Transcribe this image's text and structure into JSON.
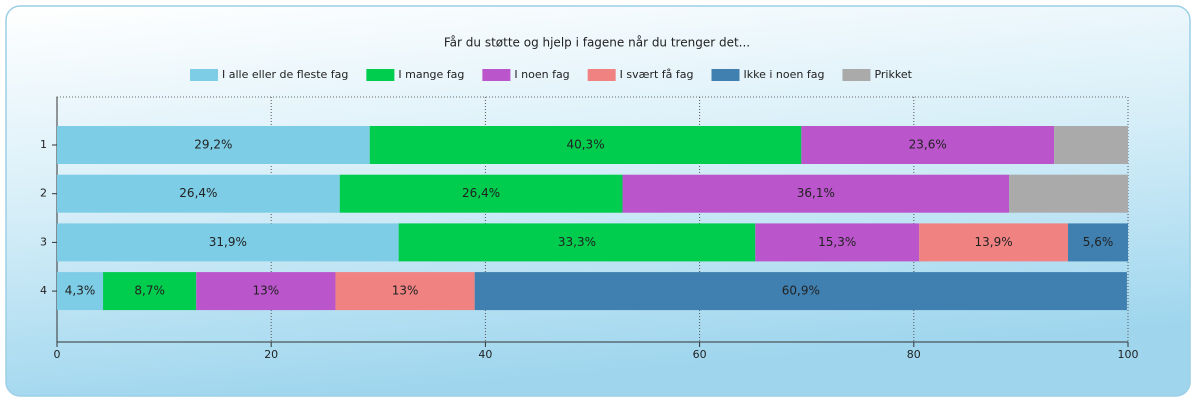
{
  "chart_data": {
    "type": "stacked-barh",
    "title": "Får du støtte og hjelp i fagene når du trenger det...",
    "categories": [
      "1",
      "2",
      "3",
      "4"
    ],
    "series": [
      {
        "name": "I alle eller de fleste fag",
        "color": "#7ecde6",
        "values": [
          29.2,
          26.4,
          31.9,
          4.3
        ],
        "value_labels": [
          "29,2%",
          "26,4%",
          "31,9%",
          "4,3%"
        ]
      },
      {
        "name": "I mange fag",
        "color": "#00cc4d",
        "values": [
          40.3,
          26.4,
          33.3,
          8.7
        ],
        "value_labels": [
          "40,3%",
          "26,4%",
          "33,3%",
          "8,7%"
        ]
      },
      {
        "name": "I noen fag",
        "color": "#bb55cc",
        "values": [
          23.6,
          36.1,
          15.3,
          13
        ],
        "value_labels": [
          "23,6%",
          "36,1%",
          "15,3%",
          "13%"
        ]
      },
      {
        "name": "I svært få fag",
        "color": "#f08282",
        "values": [
          null,
          null,
          13.9,
          13
        ],
        "value_labels": [
          null,
          null,
          "13,9%",
          "13%"
        ]
      },
      {
        "name": "Ikke i noen fag",
        "color": "#4080b0",
        "values": [
          null,
          null,
          5.6,
          60.9
        ],
        "value_labels": [
          null,
          null,
          "5,6%",
          "60,9%"
        ]
      },
      {
        "name": "Prikket",
        "color": "#aaaaaa",
        "values": [
          6.9,
          11.1,
          null,
          null
        ]
      }
    ],
    "xlim": [
      0,
      100
    ],
    "xticks": [
      0,
      20,
      40,
      60,
      80,
      100
    ],
    "grid": true,
    "legend": "top"
  }
}
